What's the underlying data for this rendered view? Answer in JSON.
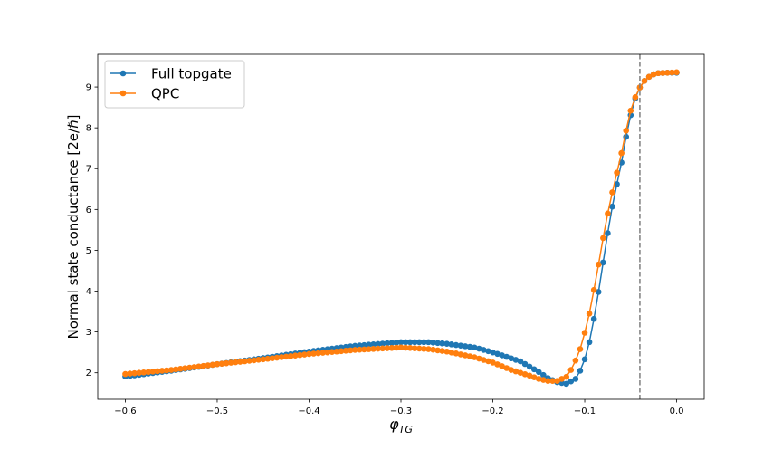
{
  "chart_data": {
    "type": "line",
    "xlabel": "φ_TG",
    "xlabel_main": "φ",
    "xlabel_sub": "TG",
    "ylabel": "Normal state conductance [2e/ℏ]",
    "xlim": [
      -0.63,
      0.03
    ],
    "ylim": [
      1.35,
      9.8
    ],
    "xticks": [
      -0.6,
      -0.5,
      -0.4,
      -0.3,
      -0.2,
      -0.1,
      0.0
    ],
    "xtick_labels": [
      "−0.6",
      "−0.5",
      "−0.4",
      "−0.3",
      "−0.2",
      "−0.1",
      "0.0"
    ],
    "yticks": [
      2,
      3,
      4,
      5,
      6,
      7,
      8,
      9
    ],
    "ytick_labels": [
      "2",
      "3",
      "4",
      "5",
      "6",
      "7",
      "8",
      "9"
    ],
    "grid": false,
    "legend_position": "top-left",
    "vline": {
      "x": -0.04,
      "style": "dashed",
      "color": "#7f7f7f"
    },
    "x_range": {
      "start": -0.6,
      "stop": 0.0,
      "count": 121
    },
    "series": [
      {
        "name": "Full topgate",
        "color": "#1f77b4",
        "anchors": [
          [
            -0.6,
            1.91
          ],
          [
            -0.55,
            2.05
          ],
          [
            -0.5,
            2.21
          ],
          [
            -0.45,
            2.36
          ],
          [
            -0.4,
            2.52
          ],
          [
            -0.35,
            2.66
          ],
          [
            -0.3,
            2.75
          ],
          [
            -0.27,
            2.75
          ],
          [
            -0.25,
            2.71
          ],
          [
            -0.22,
            2.62
          ],
          [
            -0.2,
            2.5
          ],
          [
            -0.17,
            2.28
          ],
          [
            -0.15,
            2.02
          ],
          [
            -0.14,
            1.87
          ],
          [
            -0.13,
            1.77
          ],
          [
            -0.12,
            1.73
          ],
          [
            -0.11,
            1.85
          ],
          [
            -0.105,
            2.05
          ],
          [
            -0.1,
            2.33
          ],
          [
            -0.095,
            2.75
          ],
          [
            -0.09,
            3.32
          ],
          [
            -0.085,
            3.98
          ],
          [
            -0.08,
            4.7
          ],
          [
            -0.075,
            5.42
          ],
          [
            -0.07,
            6.07
          ],
          [
            -0.065,
            6.62
          ],
          [
            -0.06,
            7.15
          ],
          [
            -0.055,
            7.78
          ],
          [
            -0.05,
            8.31
          ],
          [
            -0.045,
            8.72
          ],
          [
            -0.04,
            8.99
          ],
          [
            -0.035,
            9.15
          ],
          [
            -0.03,
            9.25
          ],
          [
            -0.025,
            9.31
          ],
          [
            -0.02,
            9.34
          ],
          [
            -0.01,
            9.35
          ],
          [
            0.0,
            9.35
          ]
        ]
      },
      {
        "name": "QPC",
        "color": "#ff7f0e",
        "anchors": [
          [
            -0.6,
            1.97
          ],
          [
            -0.55,
            2.07
          ],
          [
            -0.5,
            2.21
          ],
          [
            -0.45,
            2.33
          ],
          [
            -0.4,
            2.46
          ],
          [
            -0.35,
            2.56
          ],
          [
            -0.3,
            2.62
          ],
          [
            -0.27,
            2.58
          ],
          [
            -0.25,
            2.52
          ],
          [
            -0.22,
            2.38
          ],
          [
            -0.2,
            2.25
          ],
          [
            -0.18,
            2.07
          ],
          [
            -0.16,
            1.93
          ],
          [
            -0.15,
            1.85
          ],
          [
            -0.14,
            1.8
          ],
          [
            -0.13,
            1.8
          ],
          [
            -0.12,
            1.9
          ],
          [
            -0.115,
            2.07
          ],
          [
            -0.11,
            2.3
          ],
          [
            -0.105,
            2.58
          ],
          [
            -0.1,
            2.98
          ],
          [
            -0.095,
            3.45
          ],
          [
            -0.09,
            4.03
          ],
          [
            -0.085,
            4.65
          ],
          [
            -0.08,
            5.3
          ],
          [
            -0.075,
            5.9
          ],
          [
            -0.07,
            6.42
          ],
          [
            -0.065,
            6.9
          ],
          [
            -0.06,
            7.38
          ],
          [
            -0.055,
            7.93
          ],
          [
            -0.05,
            8.42
          ],
          [
            -0.045,
            8.75
          ],
          [
            -0.04,
            8.99
          ],
          [
            -0.035,
            9.15
          ],
          [
            -0.03,
            9.25
          ],
          [
            -0.025,
            9.31
          ],
          [
            -0.02,
            9.34
          ],
          [
            -0.01,
            9.35
          ],
          [
            0.0,
            9.36
          ]
        ]
      }
    ]
  }
}
